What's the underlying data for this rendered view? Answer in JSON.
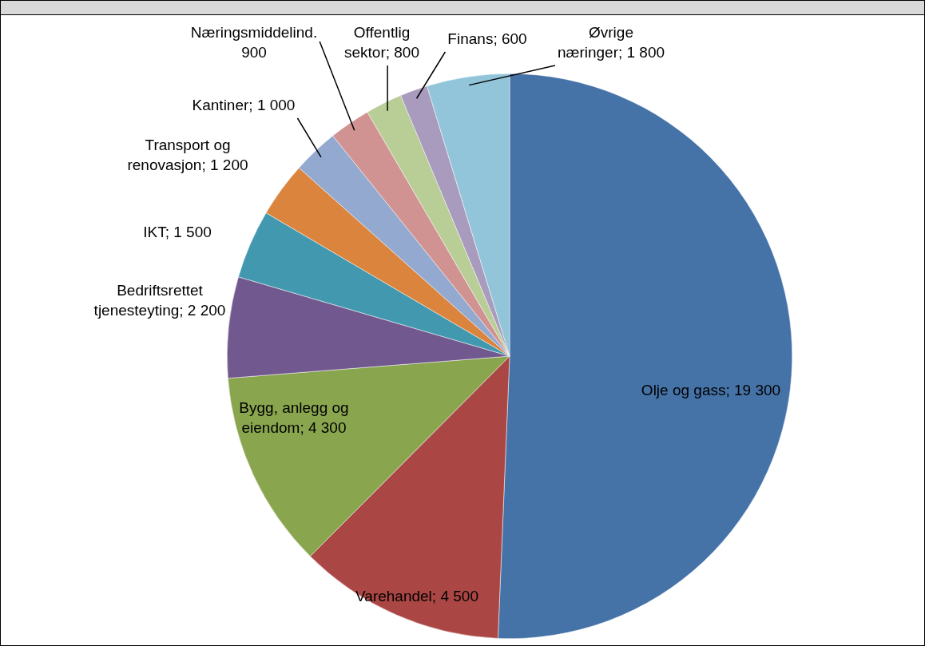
{
  "chart_data": {
    "type": "pie",
    "categories": [
      "Olje og gass",
      "Varehandel",
      "Bygg, anlegg og eiendom",
      "Bedriftsrettet tjenesteyting",
      "IKT",
      "Transport og renovasjon",
      "Kantiner",
      "Næringsmiddelind.",
      "Offentlig sektor",
      "Finans",
      "Øvrige næringer"
    ],
    "values": [
      19300,
      4500,
      4300,
      2200,
      1500,
      1200,
      1000,
      900,
      800,
      600,
      1800
    ],
    "value_labels": [
      "19 300",
      "4 500",
      "4 300",
      "2 200",
      "1 500",
      "1 200",
      "1 000",
      "900",
      "800",
      "600",
      "1 800"
    ],
    "colors": [
      "#4572a7",
      "#aa4643",
      "#89a54e",
      "#71588f",
      "#4198af",
      "#db843d",
      "#93a9cf",
      "#d19392",
      "#b9cd96",
      "#a99bbd",
      "#92c5d9"
    ],
    "legend": false
  }
}
